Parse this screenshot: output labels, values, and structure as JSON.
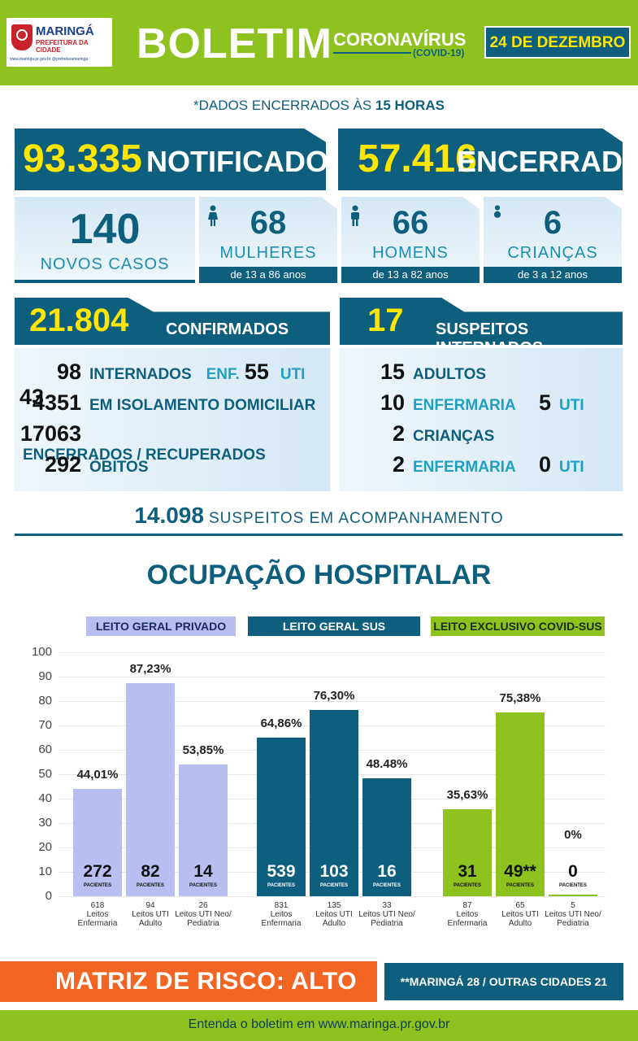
{
  "header": {
    "logo_name": "MARINGÁ",
    "logo_sub": "PREFEITURA DA CIDADE",
    "logo_links": "www.maringa.pr.gov.br  @prefeituramaringa",
    "title": "BOLETIM",
    "subtitle": "CORONAVÍRUS",
    "subtitle_tag": "(COVID-19)",
    "date": "24 DE DEZEMBRO",
    "colors": {
      "green": "#8dc21f",
      "blue": "#0e5f7e",
      "yellow": "#ffe600"
    }
  },
  "closed_note": {
    "prefix": "*DADOS ENCERRADOS ÀS ",
    "time": "15 HORAS"
  },
  "notified": {
    "value": "93.335",
    "label": "NOTIFICADOS"
  },
  "closed": {
    "value": "57.416",
    "label": "ENCERRADOS"
  },
  "new_cases": {
    "total": {
      "value": "140",
      "label": "NOVOS CASOS"
    },
    "women": {
      "value": "68",
      "label": "MULHERES",
      "range": "de 13 a 86 anos",
      "icon": "woman-icon"
    },
    "men": {
      "value": "66",
      "label": "HOMENS",
      "range": "de 13 a 82 anos",
      "icon": "man-icon"
    },
    "children": {
      "value": "6",
      "label": "CRIANÇAS",
      "range": "de 3 a 12 anos",
      "icon": "baby-icon"
    }
  },
  "confirmed": {
    "value": "21.804",
    "label": "CONFIRMADOS",
    "hospitalized": {
      "value": "98",
      "label": "INTERNADOS",
      "enf_label": "ENF.",
      "enf_value": "55",
      "uti_label": "UTI",
      "uti_value": "43"
    },
    "isolation": {
      "value": "4351",
      "label": "EM ISOLAMENTO DOMICILIAR"
    },
    "recovered": {
      "value": "17063",
      "label": "ENCERRADOS / RECUPERADOS"
    },
    "deaths": {
      "value": "292",
      "label": "ÓBITOS"
    }
  },
  "suspects_hospitalized": {
    "value": "17",
    "label": "SUSPEITOS INTERNADOS",
    "adults": {
      "value": "15",
      "label": "ADULTOS"
    },
    "adults_ward": {
      "value": "10",
      "label": "ENFERMARIA",
      "uti_value": "5",
      "uti_label": "UTI"
    },
    "children": {
      "value": "2",
      "label": "CRIANÇAS"
    },
    "children_ward": {
      "value": "2",
      "label": "ENFERMARIA",
      "uti_value": "0",
      "uti_label": "UTI"
    }
  },
  "monitoring": {
    "value": "14.098",
    "label": "SUSPEITOS EM ACOMPANHAMENTO"
  },
  "occupancy_title": "OCUPAÇÃO HOSPITALAR",
  "chart_data": {
    "type": "bar",
    "title": "OCUPAÇÃO HOSPITALAR",
    "ylim": [
      0,
      100
    ],
    "yticks": [
      "0",
      "10",
      "20",
      "30",
      "40",
      "50",
      "60",
      "70",
      "80",
      "90",
      "100"
    ],
    "patients_label": "PACIENTES",
    "groups": [
      {
        "name": "LEITO GERAL PRIVADO",
        "color": "#b8bef0",
        "header_color": "#b8bef0",
        "header_text_color": "#1b2a5e",
        "bars": [
          {
            "pct": 44.01,
            "pct_label": "44,01%",
            "patients": "272",
            "beds": "618",
            "label": "Leitos Enfermaria"
          },
          {
            "pct": 87.23,
            "pct_label": "87,23%",
            "patients": "82",
            "beds": "94",
            "label": "Leitos UTI Adulto"
          },
          {
            "pct": 53.85,
            "pct_label": "53,85%",
            "patients": "14",
            "beds": "26",
            "label": "Leitos UTI Neo/ Pediatria"
          }
        ]
      },
      {
        "name": "LEITO GERAL SUS",
        "color": "#0e5f7e",
        "header_color": "#0e5f7e",
        "header_text_color": "#ffffff",
        "bars": [
          {
            "pct": 64.86,
            "pct_label": "64,86%",
            "patients": "539",
            "beds": "831",
            "label": "Leitos Enfermaria"
          },
          {
            "pct": 76.3,
            "pct_label": "76,30%",
            "patients": "103",
            "beds": "135",
            "label": "Leitos UTI Adulto"
          },
          {
            "pct": 48.48,
            "pct_label": "48.48%",
            "patients": "16",
            "beds": "33",
            "label": "Leitos UTI Neo/ Pediatria"
          }
        ]
      },
      {
        "name": "LEITO EXCLUSIVO COVID-SUS",
        "color": "#8dc21f",
        "header_color": "#8dc21f",
        "header_text_color": "#1b2a1b",
        "bars": [
          {
            "pct": 35.63,
            "pct_label": "35,63%",
            "patients": "31",
            "beds": "87",
            "label": "Leitos Enfermaria"
          },
          {
            "pct": 75.38,
            "pct_label": "75,38%",
            "patients": "49**",
            "beds": "65",
            "label": "Leitos UTI Adulto"
          },
          {
            "pct": 0,
            "pct_label": "0%",
            "patients": "0",
            "beds": "5",
            "label": "Leitos UTI Neo/ Pediatria"
          }
        ]
      }
    ]
  },
  "risk": {
    "label": "MATRIZ DE RISCO: ALTO",
    "color": "#f26522"
  },
  "cities_note": "**MARINGÁ 28 / OUTRAS CIDADES 21",
  "footer": "Entenda o boletim em www.maringa.pr.gov.br"
}
